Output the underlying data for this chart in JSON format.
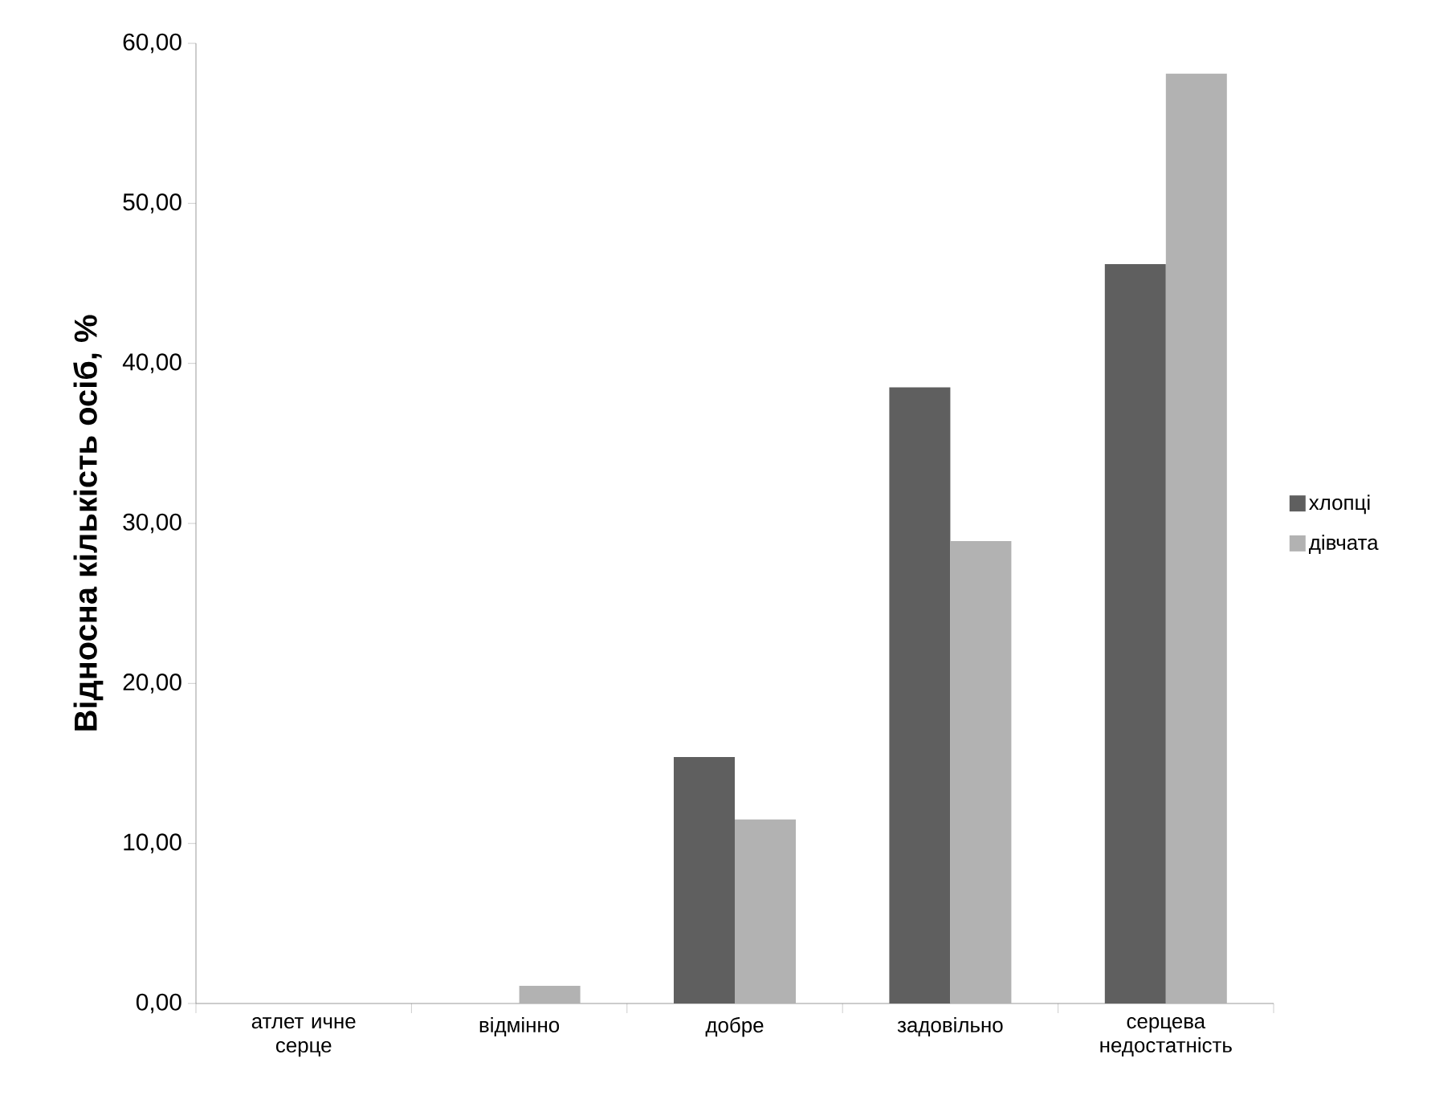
{
  "chart_data": {
    "type": "bar",
    "ylabel": "Відносна кількість осіб, %",
    "categories": [
      "атлет ичне серце",
      "відмінно",
      "добре",
      "задовільно",
      "серцева недостатність"
    ],
    "series": [
      {
        "name": "хлопці",
        "color": "#5f5f5f",
        "values": [
          0,
          0,
          15.4,
          38.5,
          46.2
        ]
      },
      {
        "name": "дівчата",
        "color": "#b2b2b2",
        "values": [
          0,
          1.1,
          11.5,
          28.9,
          58.1
        ]
      }
    ],
    "ylim": [
      0,
      60
    ],
    "yticks": [
      {
        "value": 0,
        "label": "0,00"
      },
      {
        "value": 10,
        "label": "10,00"
      },
      {
        "value": 20,
        "label": "20,00"
      },
      {
        "value": 30,
        "label": "30,00"
      },
      {
        "value": 40,
        "label": "40,00"
      },
      {
        "value": 50,
        "label": "50,00"
      },
      {
        "value": 60,
        "label": "60,00"
      }
    ],
    "legend": "right",
    "grid": false
  }
}
